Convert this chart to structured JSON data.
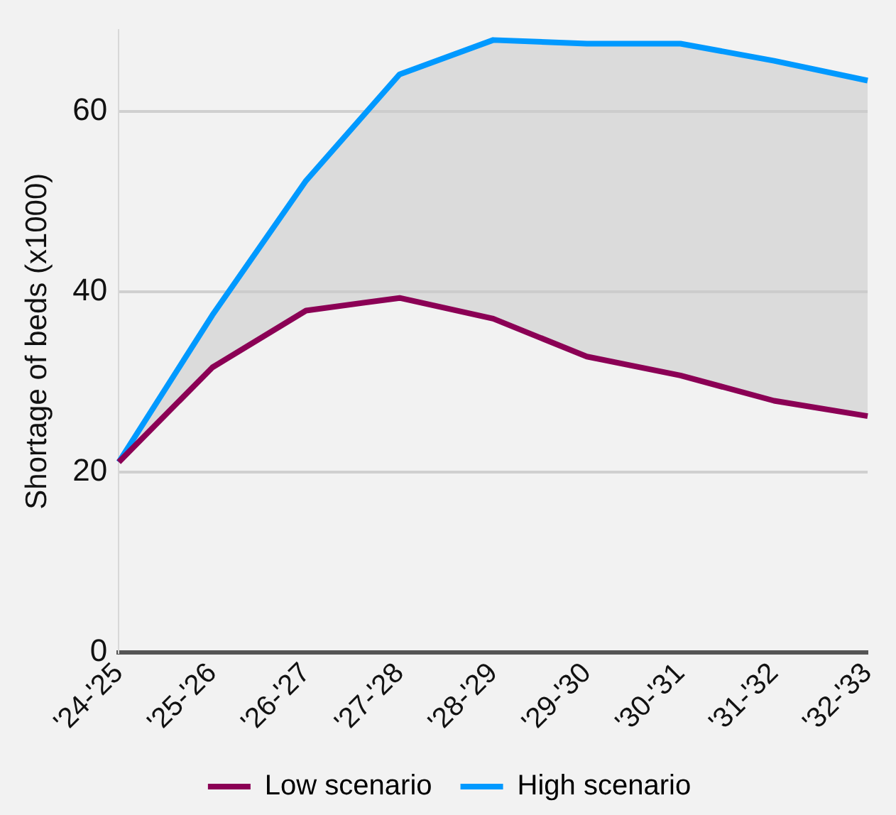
{
  "chart_data": {
    "type": "line",
    "ylabel": "Shortage of beds (x1000)",
    "categories": [
      "'24-'25",
      "'25-'26",
      "'26-'27",
      "'27-'28",
      "'28-'29",
      "'29-'30",
      "'30-'31",
      "'31-'32",
      "'32-'33"
    ],
    "series": [
      {
        "name": "Low scenario",
        "color": "#8b0055",
        "values": [
          21.1,
          31.6,
          37.9,
          39.3,
          37.0,
          32.8,
          30.7,
          27.9,
          26.2
        ]
      },
      {
        "name": "High scenario",
        "color": "#0099ff",
        "values": [
          21.1,
          37.4,
          52.3,
          64.1,
          67.9,
          67.5,
          67.5,
          65.6,
          63.4
        ]
      }
    ],
    "ylim": [
      0,
      69
    ],
    "yticks": [
      0,
      20,
      40,
      60
    ],
    "grid": "y",
    "legend": "bottom",
    "marker": "none",
    "line_style": "solid"
  }
}
